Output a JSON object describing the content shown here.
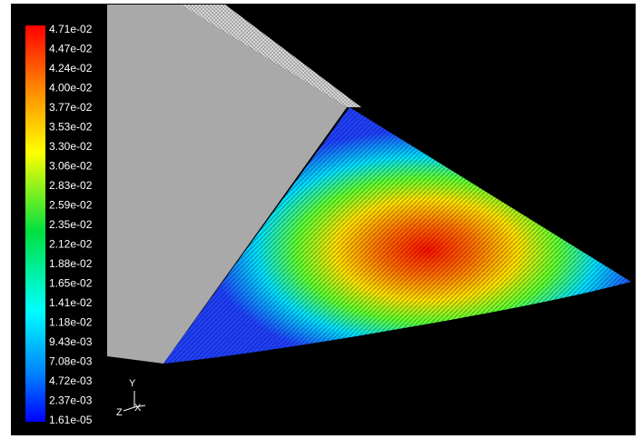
{
  "colorbar": {
    "labels": [
      "4.71e-02",
      "4.47e-02",
      "4.24e-02",
      "4.00e-02",
      "3.77e-02",
      "3.53e-02",
      "3.30e-02",
      "3.06e-02",
      "2.83e-02",
      "2.59e-02",
      "2.35e-02",
      "2.12e-02",
      "1.88e-02",
      "1.65e-02",
      "1.41e-02",
      "1.18e-02",
      "9.43e-03",
      "7.08e-03",
      "4.72e-03",
      "2.37e-03",
      "1.61e-05"
    ]
  },
  "triad": {
    "y": "Y",
    "z": "Z",
    "x": "X"
  }
}
